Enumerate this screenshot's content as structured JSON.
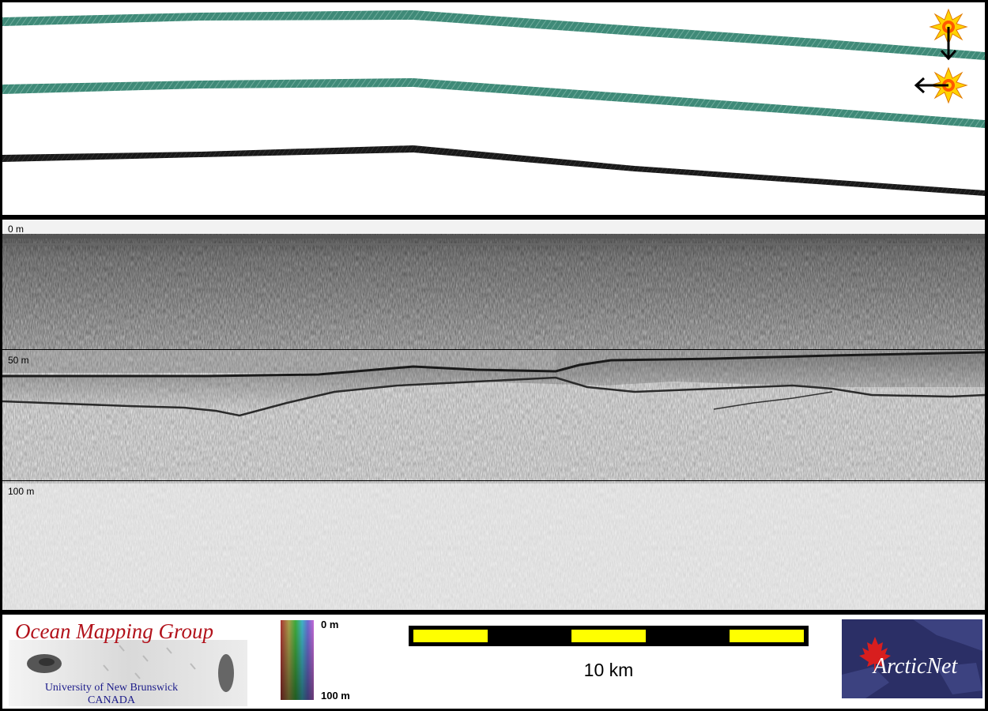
{
  "profile": {
    "depth_labels": [
      "0 m",
      "50 m",
      "100 m"
    ]
  },
  "footer": {
    "omg_logo": {
      "title": "Ocean Mapping Group",
      "university": "University of New Brunswick",
      "country": "CANADA"
    },
    "colorbar": {
      "top_label": "0 m",
      "bottom_label": "100 m"
    },
    "scale": {
      "label": "10 km",
      "colors": [
        "#ffff00",
        "#000000"
      ]
    },
    "arcticnet_logo": {
      "text": "ArcticNet"
    }
  },
  "icons": [
    "sun-icon",
    "arrow-down-icon",
    "arrow-left-icon",
    "maple-leaf-icon"
  ],
  "colors": {
    "swath": "#3f8a78",
    "profile_background": "#f2f2f2",
    "scale_bar": "#ffff00",
    "omg_title": "#b2121b",
    "omg_subtitle": "#1c1c8a",
    "arcticnet_background": "#2b2f66",
    "maple_leaf": "#d81e1e"
  }
}
